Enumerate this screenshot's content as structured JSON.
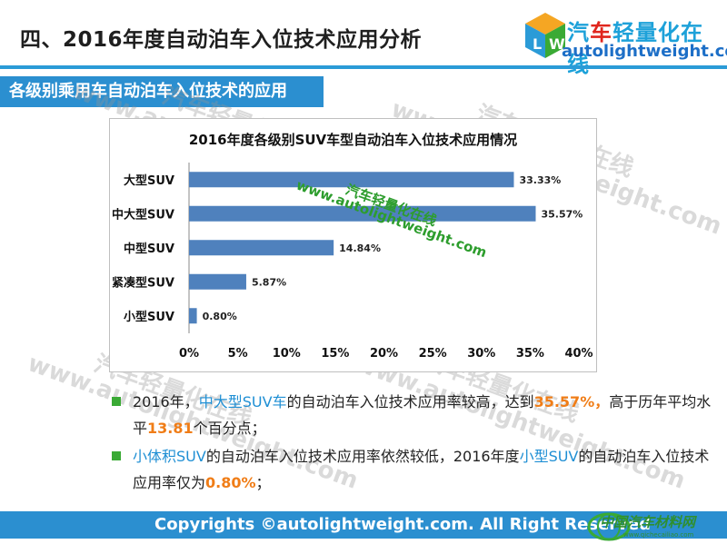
{
  "header": {
    "title": "四、2016年度自动泊车入位技术应用分析",
    "logo_cn_a": "汽",
    "logo_cn_b": "车",
    "logo_cn_c": "轻量化在线",
    "logo_en": "autolightweight.com"
  },
  "section": {
    "label": "各级别乘用车自动泊车入位技术的应用"
  },
  "watermark": {
    "cn": "汽车轻量化在线",
    "en": "www.autolightweight.com"
  },
  "chart_data": {
    "type": "bar",
    "orientation": "horizontal",
    "title": "2016年度各级别SUV车型自动泊车入位技术应用情况",
    "categories": [
      "大型SUV",
      "中大型SUV",
      "中型SUV",
      "紧凑型SUV",
      "小型SUV"
    ],
    "values": [
      33.33,
      35.57,
      14.84,
      5.87,
      0.8
    ],
    "value_labels": [
      "33.33%",
      "35.57%",
      "14.84%",
      "5.87%",
      "0.80%"
    ],
    "xlim": [
      0,
      40
    ],
    "x_ticks": [
      "0%",
      "5%",
      "10%",
      "15%",
      "20%",
      "25%",
      "30%",
      "35%",
      "40%"
    ],
    "grid": false,
    "bar_color": "#4f81bd"
  },
  "bullets": [
    {
      "parts": [
        {
          "t": "2016年，",
          "c": ""
        },
        {
          "t": "中大型SUV车",
          "c": "blue"
        },
        {
          "t": "的自动泊车入位技术应用率较高，达到",
          "c": ""
        },
        {
          "t": "35.57%，",
          "c": "orange"
        },
        {
          "t": "高于历年平均水平",
          "c": ""
        },
        {
          "t": "13.81",
          "c": "orange"
        },
        {
          "t": "个百分点；",
          "c": ""
        }
      ]
    },
    {
      "parts": [
        {
          "t": "小体积SUV",
          "c": "blue"
        },
        {
          "t": "的自动泊车入位技术应用率依然较低，2016年度",
          "c": ""
        },
        {
          "t": "小型SUV",
          "c": "blue"
        },
        {
          "t": "的自动泊车入位技术应用率仅为",
          "c": ""
        },
        {
          "t": "0.80%",
          "c": "orange"
        },
        {
          "t": "；",
          "c": ""
        }
      ]
    }
  ],
  "footer": {
    "copyright": "Copyrights ©autolightweight.com. All Right Reserved",
    "logo_cn": "中国汽车材料网",
    "logo_en": "www.qichecailiao.com"
  },
  "colors": {
    "accent": "#2b8fd0",
    "bullet": "#3aaa35",
    "highlight_blue": "#1f8fd4",
    "highlight_orange": "#f07d17"
  }
}
